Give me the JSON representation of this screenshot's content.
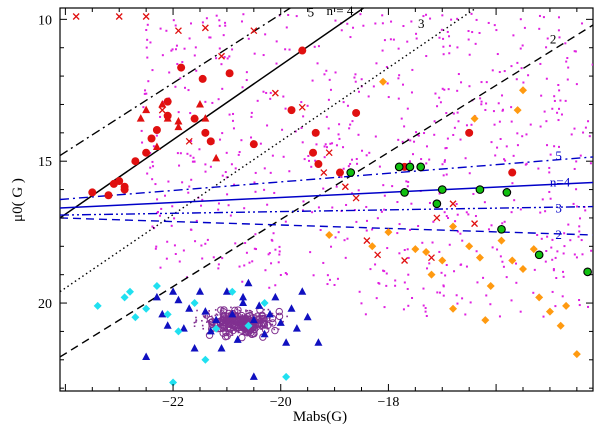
{
  "chart_data": {
    "type": "scatter",
    "xlabel": "Mabs(G)",
    "ylabel": "μ0( G )",
    "xlim": [
      -24.1,
      -14.2
    ],
    "ylim": [
      23.1,
      9.6
    ],
    "y_inverted": true,
    "x_ticks": [
      -22,
      -20,
      -18
    ],
    "y_ticks": [
      10,
      15,
      20
    ],
    "colors": {
      "magenta": "#e020e0",
      "red": "#e01010",
      "orange": "#ff9a10",
      "green": "#10c010",
      "navy": "#1010c0",
      "cyan": "#20e0f0",
      "purple": "#803090",
      "blue_line": "#0000c8"
    },
    "black_lines": [
      {
        "name": "5",
        "style": "dash-dot",
        "points": [
          [
            -24.1,
            14.8
          ],
          [
            -19.0,
            8.6
          ]
        ]
      },
      {
        "name": "n = 4",
        "style": "solid",
        "points": [
          [
            -24.1,
            17.0
          ],
          [
            -17.7,
            8.6
          ]
        ]
      },
      {
        "name": "3",
        "style": "dotted",
        "points": [
          [
            -24.1,
            19.6
          ],
          [
            -15.6,
            8.6
          ]
        ]
      },
      {
        "name": "2",
        "style": "dashed",
        "points": [
          [
            -24.1,
            21.9
          ],
          [
            -14.2,
            10.2
          ]
        ]
      }
    ],
    "blue_lines": [
      {
        "name": "5",
        "style": "dash-dot",
        "points": [
          [
            -24.1,
            16.35
          ],
          [
            -14.2,
            14.85
          ]
        ]
      },
      {
        "name": "n=4",
        "style": "solid",
        "points": [
          [
            -24.1,
            16.65
          ],
          [
            -14.2,
            15.75
          ]
        ]
      },
      {
        "name": "3",
        "style": "dash-dot-dot",
        "points": [
          [
            -24.1,
            16.9
          ],
          [
            -14.2,
            16.6
          ]
        ]
      },
      {
        "name": "2",
        "style": "dashed",
        "points": [
          [
            -24.1,
            17.0
          ],
          [
            -14.2,
            17.6
          ]
        ]
      }
    ],
    "series": [
      {
        "marker": "filled-circle",
        "color": "red",
        "points": [
          [
            -23.5,
            16.1
          ],
          [
            -23.2,
            16.2
          ],
          [
            -23.1,
            15.8
          ],
          [
            -23.0,
            15.7
          ],
          [
            -22.9,
            15.9
          ],
          [
            -22.9,
            16.0
          ],
          [
            -22.7,
            15.0
          ],
          [
            -22.5,
            14.7
          ],
          [
            -22.4,
            14.2
          ],
          [
            -22.3,
            13.9
          ],
          [
            -22.1,
            12.9
          ],
          [
            -22.1,
            13.4
          ],
          [
            -21.85,
            11.7
          ],
          [
            -21.6,
            13.5
          ],
          [
            -21.45,
            12.1
          ],
          [
            -21.4,
            14.0
          ],
          [
            -21.3,
            14.3
          ],
          [
            -20.95,
            11.9
          ],
          [
            -20.5,
            14.4
          ],
          [
            -19.8,
            13.2
          ],
          [
            -19.6,
            11.1
          ],
          [
            -19.4,
            14.7
          ],
          [
            -19.35,
            14.0
          ],
          [
            -19.3,
            15.1
          ],
          [
            -18.9,
            15.4
          ],
          [
            -18.6,
            13.3
          ],
          [
            -17.8,
            15.2
          ],
          [
            -17.7,
            15.2
          ],
          [
            -16.5,
            14.0
          ],
          [
            -15.7,
            15.4
          ]
        ]
      },
      {
        "marker": "triangle",
        "color": "red",
        "points": [
          [
            -22.6,
            13.5
          ],
          [
            -22.5,
            13.2
          ],
          [
            -22.3,
            14.5
          ],
          [
            -22.2,
            13.0
          ],
          [
            -22.1,
            13.5
          ],
          [
            -21.9,
            13.8
          ],
          [
            -21.9,
            13.6
          ],
          [
            -21.5,
            13.0
          ],
          [
            -21.4,
            13.5
          ],
          [
            -21.2,
            14.9
          ]
        ]
      },
      {
        "marker": "filled-circle-outlined",
        "color": "green",
        "points": [
          [
            -18.7,
            15.4
          ],
          [
            -17.8,
            15.2
          ],
          [
            -17.7,
            16.1
          ],
          [
            -17.6,
            15.2
          ],
          [
            -17.4,
            15.2
          ],
          [
            -17.1,
            16.5
          ],
          [
            -17.0,
            16.0
          ],
          [
            -16.3,
            16.0
          ],
          [
            -15.9,
            17.4
          ],
          [
            -15.8,
            16.1
          ],
          [
            -15.2,
            18.3
          ],
          [
            -14.3,
            18.9
          ]
        ]
      },
      {
        "marker": "triangle",
        "color": "navy",
        "points": [
          [
            -22.3,
            19.8
          ],
          [
            -22.2,
            20.4
          ],
          [
            -22.1,
            20.8
          ],
          [
            -21.9,
            19.9
          ],
          [
            -21.7,
            20.2
          ],
          [
            -21.5,
            19.6
          ],
          [
            -21.4,
            20.3
          ],
          [
            -21.3,
            21.0
          ],
          [
            -21.2,
            20.6
          ],
          [
            -21.0,
            19.6
          ],
          [
            -20.9,
            20.4
          ],
          [
            -20.8,
            21.3
          ],
          [
            -20.7,
            20.0
          ],
          [
            -20.6,
            19.3
          ],
          [
            -20.5,
            20.6
          ],
          [
            -20.4,
            20.1
          ],
          [
            -20.3,
            21.1
          ],
          [
            -20.2,
            20.4
          ],
          [
            -20.1,
            19.8
          ],
          [
            -20.0,
            20.7
          ],
          [
            -19.9,
            21.4
          ],
          [
            -19.8,
            20.2
          ],
          [
            -19.7,
            20.9
          ],
          [
            -19.6,
            19.6
          ],
          [
            -19.5,
            20.5
          ],
          [
            -21.6,
            21.6
          ],
          [
            -20.5,
            22.6
          ],
          [
            -22.5,
            21.9
          ],
          [
            -21.1,
            21.6
          ],
          [
            -20.7,
            19.8
          ],
          [
            -19.3,
            21.4
          ],
          [
            -22.0,
            19.6
          ],
          [
            -21.8,
            20.9
          ]
        ]
      },
      {
        "marker": "diamond",
        "color": "cyan",
        "points": [
          [
            -23.4,
            20.1
          ],
          [
            -22.9,
            19.8
          ],
          [
            -22.7,
            20.5
          ],
          [
            -22.5,
            20.2
          ],
          [
            -22.3,
            19.4
          ],
          [
            -22.1,
            20.4
          ],
          [
            -21.9,
            21.0
          ],
          [
            -21.6,
            20.0
          ],
          [
            -21.2,
            20.9
          ],
          [
            -20.9,
            19.6
          ],
          [
            -20.6,
            20.8
          ],
          [
            -22.0,
            22.8
          ],
          [
            -19.9,
            22.6
          ],
          [
            -20.3,
            20.0
          ],
          [
            -21.4,
            22.0
          ],
          [
            -22.8,
            19.6
          ]
        ]
      },
      {
        "marker": "diamond",
        "color": "orange",
        "points": [
          [
            -18.3,
            18.0
          ],
          [
            -18.0,
            17.5
          ],
          [
            -17.5,
            18.1
          ],
          [
            -17.3,
            18.2
          ],
          [
            -17.0,
            18.5
          ],
          [
            -16.8,
            17.3
          ],
          [
            -16.5,
            18.0
          ],
          [
            -16.3,
            18.4
          ],
          [
            -16.1,
            19.4
          ],
          [
            -15.9,
            17.8
          ],
          [
            -15.7,
            18.5
          ],
          [
            -15.5,
            18.8
          ],
          [
            -15.3,
            18.1
          ],
          [
            -15.2,
            19.8
          ],
          [
            -15.0,
            20.3
          ],
          [
            -14.8,
            20.8
          ],
          [
            -14.7,
            20.1
          ],
          [
            -14.5,
            21.8
          ],
          [
            -16.8,
            20.2
          ],
          [
            -16.2,
            20.6
          ],
          [
            -19.1,
            17.6
          ],
          [
            -17.2,
            19.0
          ],
          [
            -15.5,
            12.5
          ],
          [
            -15.6,
            13.2
          ],
          [
            -18.1,
            12.2
          ],
          [
            -16.4,
            13.5
          ]
        ]
      },
      {
        "marker": "x-cross",
        "color": "red",
        "points": [
          [
            -23.8,
            9.9
          ],
          [
            -23.0,
            9.9
          ],
          [
            -22.5,
            9.9
          ],
          [
            -21.9,
            10.4
          ],
          [
            -21.4,
            10.3
          ],
          [
            -21.1,
            11.3
          ],
          [
            -20.5,
            10.4
          ],
          [
            -20.1,
            12.6
          ],
          [
            -19.6,
            13.1
          ],
          [
            -19.2,
            15.4
          ],
          [
            -19.1,
            14.7
          ],
          [
            -18.8,
            15.9
          ],
          [
            -18.6,
            16.3
          ],
          [
            -18.4,
            17.8
          ],
          [
            -18.2,
            18.3
          ],
          [
            -17.7,
            18.5
          ],
          [
            -17.2,
            18.4
          ],
          [
            -17.1,
            17.0
          ],
          [
            -16.8,
            16.5
          ],
          [
            -16.4,
            17.2
          ],
          [
            -22.2,
            13.2
          ],
          [
            -21.7,
            14.3
          ]
        ]
      }
    ]
  }
}
